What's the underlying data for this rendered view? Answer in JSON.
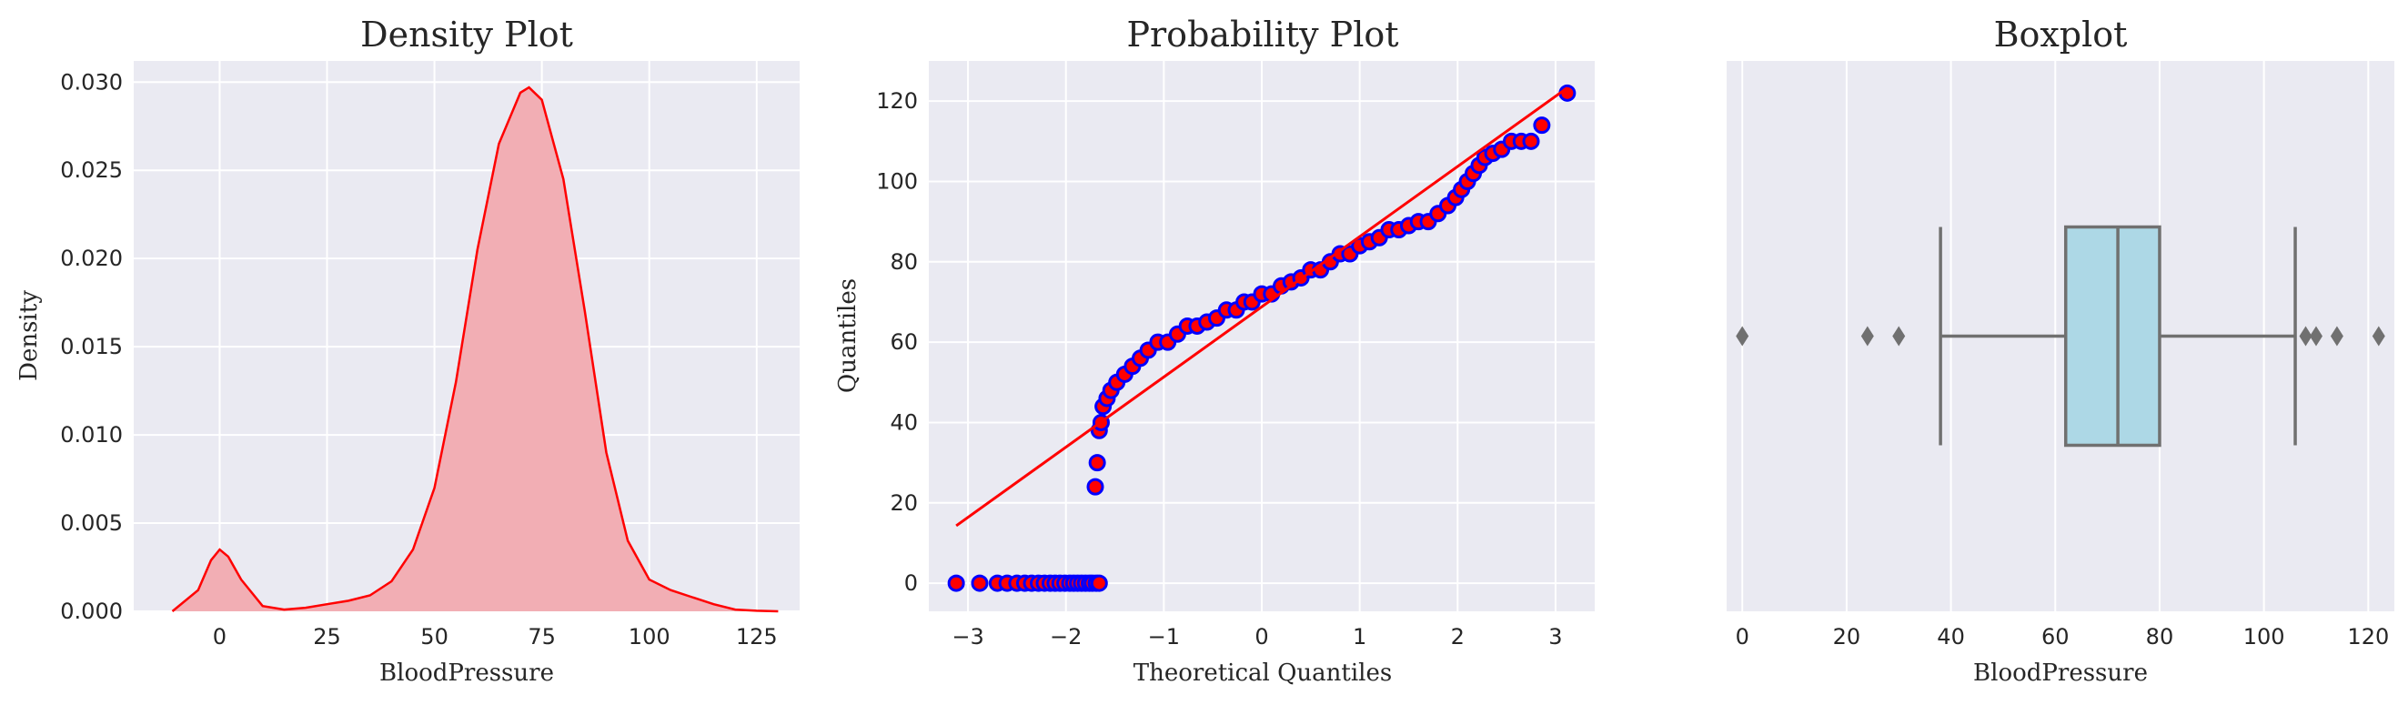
{
  "chart_data": [
    {
      "type": "area",
      "title": "Density Plot",
      "xlabel": "BloodPressure",
      "ylabel": "Density",
      "xlim": [
        -20,
        135
      ],
      "ylim": [
        0,
        0.0312
      ],
      "xticks": [
        0,
        25,
        50,
        75,
        100,
        125
      ],
      "xtick_labels": [
        "0",
        "25",
        "50",
        "75",
        "100",
        "125"
      ],
      "yticks": [
        0,
        0.005,
        0.01,
        0.015,
        0.02,
        0.025,
        0.03
      ],
      "ytick_labels": [
        "0.000",
        "0.005",
        "0.010",
        "0.015",
        "0.020",
        "0.025",
        "0.030"
      ],
      "grid": true,
      "line_color": "#ff0000",
      "fill_color": "#f2aeb4",
      "x": [
        -11,
        -5,
        -2,
        0,
        2,
        5,
        10,
        15,
        20,
        25,
        30,
        35,
        40,
        45,
        50,
        55,
        60,
        65,
        70,
        72,
        75,
        80,
        85,
        90,
        95,
        100,
        105,
        110,
        115,
        120,
        125,
        130
      ],
      "y": [
        0,
        0.0012,
        0.0029,
        0.0035,
        0.0031,
        0.0018,
        0.0003,
        0.0001,
        0.0002,
        0.0004,
        0.0006,
        0.0009,
        0.0017,
        0.0035,
        0.007,
        0.013,
        0.0205,
        0.0265,
        0.0294,
        0.0297,
        0.029,
        0.0245,
        0.017,
        0.009,
        0.004,
        0.0018,
        0.0012,
        0.0008,
        0.0004,
        0.0001,
        3e-05,
        0
      ]
    },
    {
      "type": "scatter",
      "title": "Probability Plot",
      "xlabel": "Theoretical Quantiles",
      "ylabel": "Quantiles",
      "xlim": [
        -3.4,
        3.4
      ],
      "ylim": [
        -7,
        130
      ],
      "xticks": [
        -3,
        -2,
        -1,
        0,
        1,
        2,
        3
      ],
      "xtick_labels": [
        "−3",
        "−2",
        "−1",
        "0",
        "1",
        "2",
        "3"
      ],
      "yticks": [
        0,
        20,
        40,
        60,
        80,
        100,
        120
      ],
      "ytick_labels": [
        "0",
        "20",
        "40",
        "60",
        "80",
        "100",
        "120"
      ],
      "grid": true,
      "point_fill": "#ff0000",
      "point_edge": "#0000ff",
      "fit_line": {
        "x": [
          -3.12,
          3.12
        ],
        "y": [
          14.3,
          123.3
        ],
        "color": "#ff0000"
      },
      "points": [
        [
          -3.12,
          0
        ],
        [
          -2.88,
          0
        ],
        [
          -2.7,
          0
        ],
        [
          -2.6,
          0
        ],
        [
          -2.5,
          0
        ],
        [
          -2.42,
          0
        ],
        [
          -2.35,
          0
        ],
        [
          -2.28,
          0
        ],
        [
          -2.22,
          0
        ],
        [
          -2.16,
          0
        ],
        [
          -2.11,
          0
        ],
        [
          -2.06,
          0
        ],
        [
          -2.01,
          0
        ],
        [
          -1.96,
          0
        ],
        [
          -1.92,
          0
        ],
        [
          -1.88,
          0
        ],
        [
          -1.84,
          0
        ],
        [
          -1.8,
          0
        ],
        [
          -1.76,
          0
        ],
        [
          -1.73,
          0
        ],
        [
          -1.69,
          0
        ],
        [
          -1.66,
          0
        ],
        [
          -1.7,
          24
        ],
        [
          -1.68,
          30
        ],
        [
          -1.66,
          38
        ],
        [
          -1.64,
          40
        ],
        [
          -1.62,
          44
        ],
        [
          -1.58,
          46
        ],
        [
          -1.54,
          48
        ],
        [
          -1.48,
          50
        ],
        [
          -1.4,
          52
        ],
        [
          -1.32,
          54
        ],
        [
          -1.24,
          56
        ],
        [
          -1.16,
          58
        ],
        [
          -1.06,
          60
        ],
        [
          -0.96,
          60
        ],
        [
          -0.86,
          62
        ],
        [
          -0.76,
          64
        ],
        [
          -0.66,
          64
        ],
        [
          -0.56,
          65
        ],
        [
          -0.46,
          66
        ],
        [
          -0.36,
          68
        ],
        [
          -0.26,
          68
        ],
        [
          -0.18,
          70
        ],
        [
          -0.1,
          70
        ],
        [
          0.0,
          72
        ],
        [
          0.1,
          72
        ],
        [
          0.2,
          74
        ],
        [
          0.3,
          75
        ],
        [
          0.4,
          76
        ],
        [
          0.5,
          78
        ],
        [
          0.6,
          78
        ],
        [
          0.7,
          80
        ],
        [
          0.8,
          82
        ],
        [
          0.9,
          82
        ],
        [
          1.0,
          84
        ],
        [
          1.1,
          85
        ],
        [
          1.2,
          86
        ],
        [
          1.3,
          88
        ],
        [
          1.4,
          88
        ],
        [
          1.5,
          89
        ],
        [
          1.6,
          90
        ],
        [
          1.7,
          90
        ],
        [
          1.8,
          92
        ],
        [
          1.9,
          94
        ],
        [
          1.98,
          96
        ],
        [
          2.04,
          98
        ],
        [
          2.1,
          100
        ],
        [
          2.16,
          102
        ],
        [
          2.22,
          104
        ],
        [
          2.28,
          106
        ],
        [
          2.36,
          107
        ],
        [
          2.45,
          108
        ],
        [
          2.55,
          110
        ],
        [
          2.65,
          110
        ],
        [
          2.75,
          110
        ],
        [
          2.86,
          114
        ],
        [
          3.12,
          122
        ]
      ]
    },
    {
      "type": "box",
      "title": "Boxplot",
      "xlabel": "BloodPressure",
      "xlim": [
        -3,
        125
      ],
      "xticks": [
        0,
        20,
        40,
        60,
        80,
        100,
        120
      ],
      "xtick_labels": [
        "0",
        "20",
        "40",
        "60",
        "80",
        "100",
        "120"
      ],
      "grid": true,
      "box_fill": "#add8e6",
      "line_color": "#707070",
      "whisker_low": 38,
      "q1": 62,
      "median": 72,
      "q3": 80,
      "whisker_high": 106,
      "outliers": [
        0,
        24,
        30,
        108,
        110,
        114,
        122
      ]
    }
  ]
}
